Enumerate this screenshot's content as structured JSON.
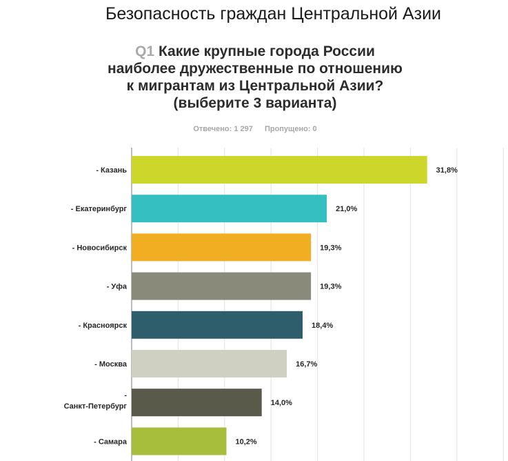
{
  "page": {
    "title": "Безопасность граждан Центральной Азии"
  },
  "question": {
    "number": "Q1",
    "lines": [
      "Какие крупные города России",
      "наиболее дружественные по отношению",
      "к мигрантам из Центральной Азии?",
      "(выберите 3 варианта)"
    ]
  },
  "stats": {
    "answered": "Отвечено: 1 297",
    "skipped": "Пропущено: 0"
  },
  "chart_data": {
    "type": "bar",
    "orientation": "horizontal",
    "categories": [
      "- Казань",
      "- Екатеринбург",
      "- Новосибирск",
      "- Уфа",
      "- Красноярск",
      "- Москва",
      "- Санкт-Петербург",
      "- Самара"
    ],
    "values": [
      31.8,
      21.0,
      19.3,
      19.3,
      18.4,
      16.7,
      14.0,
      10.2
    ],
    "value_labels": [
      "31,8%",
      "21,0%",
      "19,3%",
      "19,3%",
      "18,4%",
      "16,7%",
      "14,0%",
      "10,2%"
    ],
    "colors": [
      "#cdd62b",
      "#35bfc0",
      "#f2ae22",
      "#8a8a7b",
      "#2e5e6c",
      "#cfcfc2",
      "#5a5a4b",
      "#a6be3b"
    ],
    "xlim": [
      0,
      50
    ],
    "grid": true
  }
}
